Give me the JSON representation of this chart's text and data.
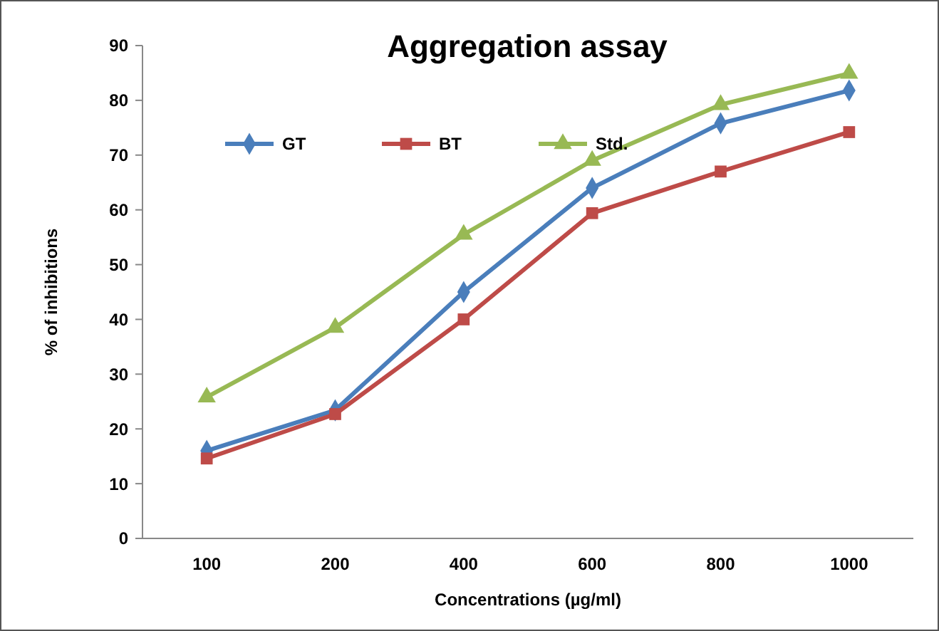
{
  "chart_data": {
    "type": "line",
    "title": "Aggregation assay",
    "xlabel": "Concentrations (µg/ml)",
    "ylabel": "% of inhibitions",
    "categories": [
      "100",
      "200",
      "400",
      "600",
      "800",
      "1000"
    ],
    "series": [
      {
        "name": "GT",
        "color": "#4a7ebb",
        "marker": "diamond",
        "values": [
          16,
          23.4,
          45,
          64,
          75.8,
          81.8
        ]
      },
      {
        "name": "BT",
        "color": "#be4b48",
        "marker": "square",
        "values": [
          14.6,
          22.7,
          40,
          59.4,
          67,
          74.2
        ]
      },
      {
        "name": "Std.",
        "color": "#98b954",
        "marker": "triangle",
        "values": [
          25.8,
          38.5,
          55.5,
          69,
          79.2,
          84.9
        ]
      }
    ],
    "ylim": [
      0,
      90
    ],
    "yticks": [
      0,
      10,
      20,
      30,
      40,
      50,
      60,
      70,
      80,
      90
    ],
    "grid": false,
    "legend": "top left"
  }
}
